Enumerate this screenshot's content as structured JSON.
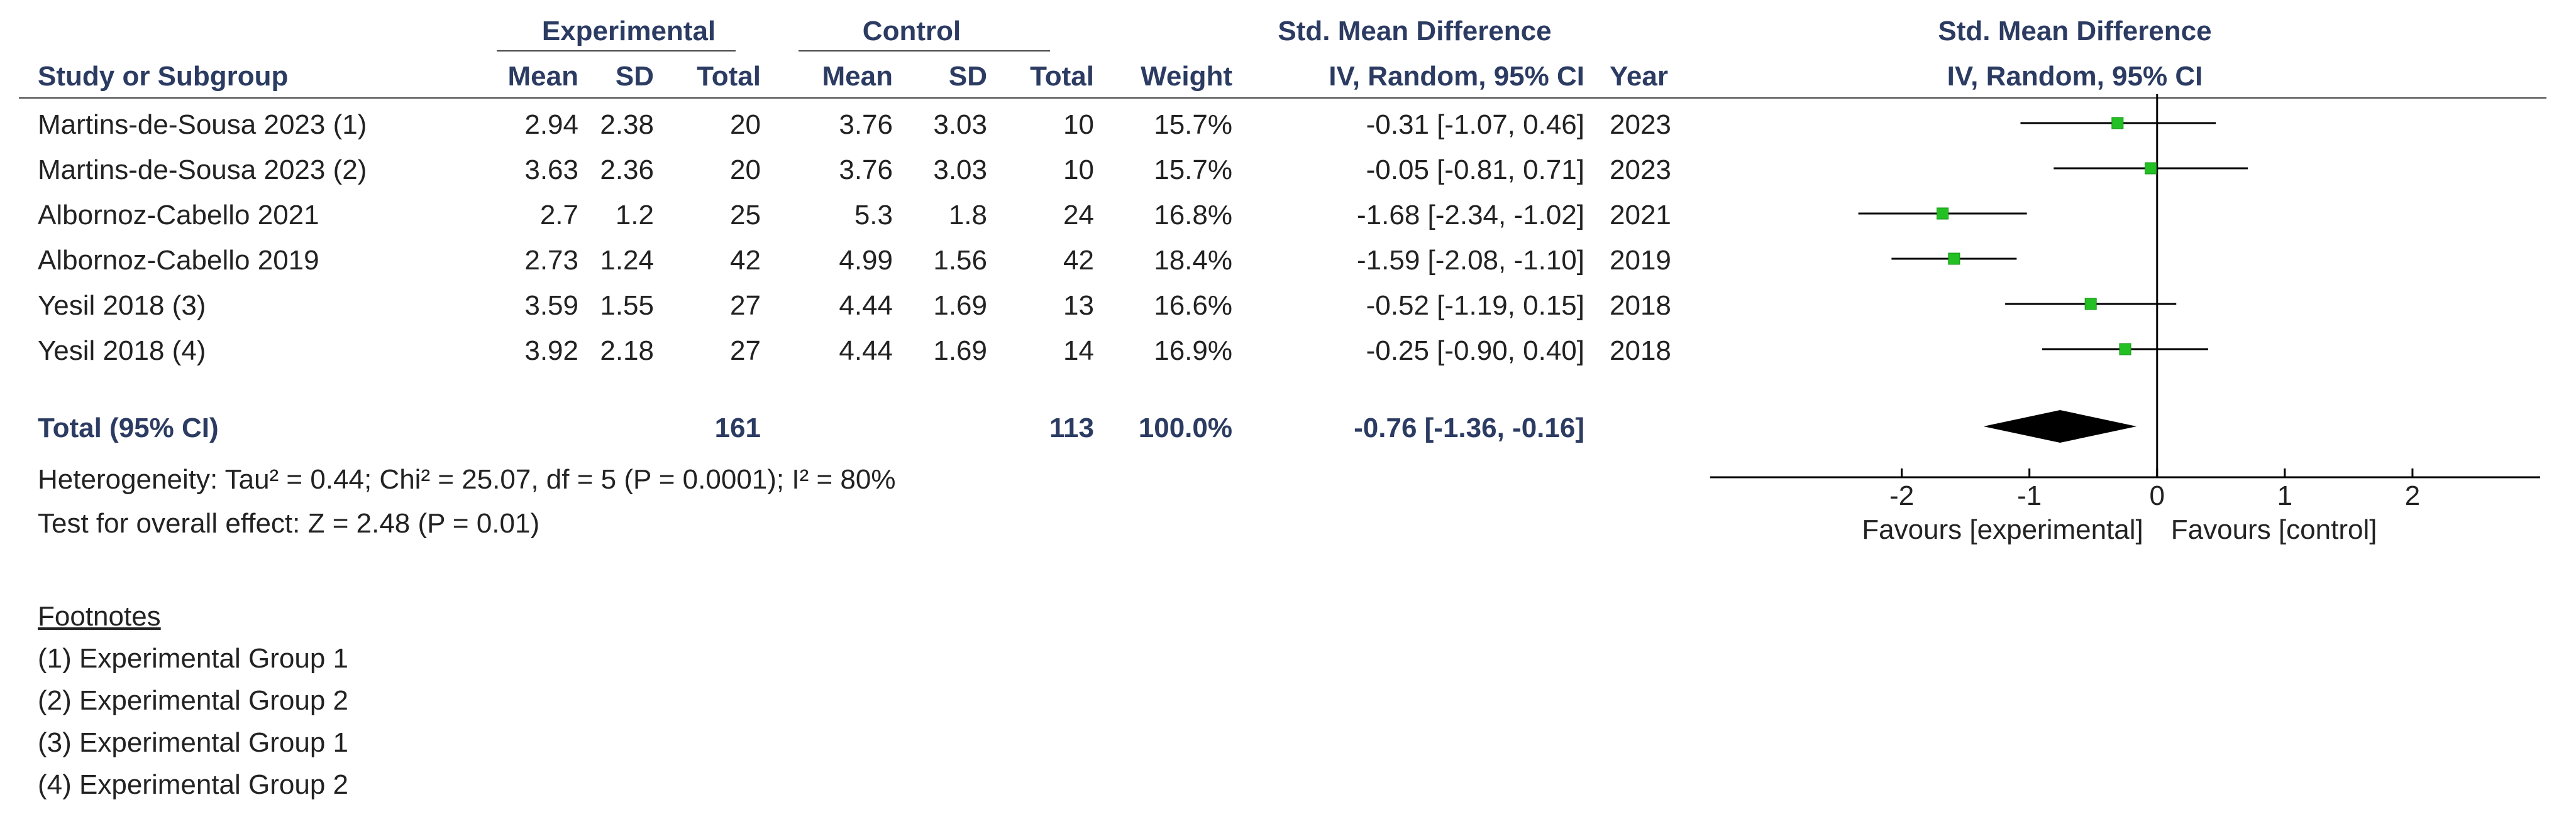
{
  "header": {
    "group_experimental": "Experimental",
    "group_control": "Control",
    "group_smd": "Std. Mean Difference",
    "plot_title": "Std. Mean Difference",
    "plot_subtitle": "IV, Random, 95% CI",
    "col_study": "Study or Subgroup",
    "col_exp_mean": "Mean",
    "col_exp_sd": "SD",
    "col_exp_total": "Total",
    "col_ctl_mean": "Mean",
    "col_ctl_sd": "SD",
    "col_ctl_total": "Total",
    "col_weight": "Weight",
    "col_smd": "IV, Random, 95% CI",
    "col_year": "Year"
  },
  "rows": [
    {
      "study": "Martins-de-Sousa 2023 (1)",
      "exp_mean": "2.94",
      "exp_sd": "2.38",
      "exp_total": "20",
      "ctl_mean": "3.76",
      "ctl_sd": "3.03",
      "ctl_total": "10",
      "weight": "15.7%",
      "smd_ci": "-0.31 [-1.07, 0.46]",
      "year": "2023"
    },
    {
      "study": "Martins-de-Sousa 2023 (2)",
      "exp_mean": "3.63",
      "exp_sd": "2.36",
      "exp_total": "20",
      "ctl_mean": "3.76",
      "ctl_sd": "3.03",
      "ctl_total": "10",
      "weight": "15.7%",
      "smd_ci": "-0.05 [-0.81, 0.71]",
      "year": "2023"
    },
    {
      "study": "Albornoz-Cabello 2021",
      "exp_mean": "2.7",
      "exp_sd": "1.2",
      "exp_total": "25",
      "ctl_mean": "5.3",
      "ctl_sd": "1.8",
      "ctl_total": "24",
      "weight": "16.8%",
      "smd_ci": "-1.68 [-2.34, -1.02]",
      "year": "2021"
    },
    {
      "study": "Albornoz-Cabello 2019",
      "exp_mean": "2.73",
      "exp_sd": "1.24",
      "exp_total": "42",
      "ctl_mean": "4.99",
      "ctl_sd": "1.56",
      "ctl_total": "42",
      "weight": "18.4%",
      "smd_ci": "-1.59 [-2.08, -1.10]",
      "year": "2019"
    },
    {
      "study": "Yesil 2018 (3)",
      "exp_mean": "3.59",
      "exp_sd": "1.55",
      "exp_total": "27",
      "ctl_mean": "4.44",
      "ctl_sd": "1.69",
      "ctl_total": "13",
      "weight": "16.6%",
      "smd_ci": "-0.52 [-1.19, 0.15]",
      "year": "2018"
    },
    {
      "study": "Yesil 2018 (4)",
      "exp_mean": "3.92",
      "exp_sd": "2.18",
      "exp_total": "27",
      "ctl_mean": "4.44",
      "ctl_sd": "1.69",
      "ctl_total": "14",
      "weight": "16.9%",
      "smd_ci": "-0.25 [-0.90, 0.40]",
      "year": "2018"
    }
  ],
  "total": {
    "label": "Total (95% CI)",
    "exp_total": "161",
    "ctl_total": "113",
    "weight": "100.0%",
    "smd_ci": "-0.76 [-1.36, -0.16]"
  },
  "heterogeneity": "Heterogeneity: Tau² = 0.44; Chi² = 25.07, df = 5 (P = 0.0001); I² = 80%",
  "overall_effect": "Test for overall effect: Z = 2.48 (P = 0.01)",
  "footnotes": {
    "title": "Footnotes",
    "items": [
      "(1) Experimental Group 1",
      "(2) Experimental Group 2",
      "(3) Experimental Group 1",
      "(4) Experimental Group 2"
    ]
  },
  "colors": {
    "marker": "#22c022",
    "marker_edge": "#159015",
    "diamond": "#000000",
    "line": "#000000",
    "header_text": "#2b3b62"
  },
  "chart_data": {
    "type": "scatter",
    "title": "Std. Mean Difference",
    "subtitle": "IV, Random, 95% CI",
    "xlim": [
      -3.5,
      3.0
    ],
    "xticks": [
      -2,
      -1,
      0,
      1,
      2
    ],
    "xtick_labels": [
      "-2",
      "-1",
      "0",
      "1",
      "2"
    ],
    "favours_left": "Favours [experimental]",
    "favours_right": "Favours [control]",
    "studies": [
      {
        "label": "Martins-de-Sousa 2023 (1)",
        "smd": -0.31,
        "lower": -1.07,
        "upper": 0.46,
        "weight": 15.7
      },
      {
        "label": "Martins-de-Sousa 2023 (2)",
        "smd": -0.05,
        "lower": -0.81,
        "upper": 0.71,
        "weight": 15.7
      },
      {
        "label": "Albornoz-Cabello 2021",
        "smd": -1.68,
        "lower": -2.34,
        "upper": -1.02,
        "weight": 16.8
      },
      {
        "label": "Albornoz-Cabello 2019",
        "smd": -1.59,
        "lower": -2.08,
        "upper": -1.1,
        "weight": 18.4
      },
      {
        "label": "Yesil 2018 (3)",
        "smd": -0.52,
        "lower": -1.19,
        "upper": 0.15,
        "weight": 16.6
      },
      {
        "label": "Yesil 2018 (4)",
        "smd": -0.25,
        "lower": -0.9,
        "upper": 0.4,
        "weight": 16.9
      }
    ],
    "pooled": {
      "label": "Total (95% CI)",
      "smd": -0.76,
      "lower": -1.36,
      "upper": -0.16
    }
  }
}
